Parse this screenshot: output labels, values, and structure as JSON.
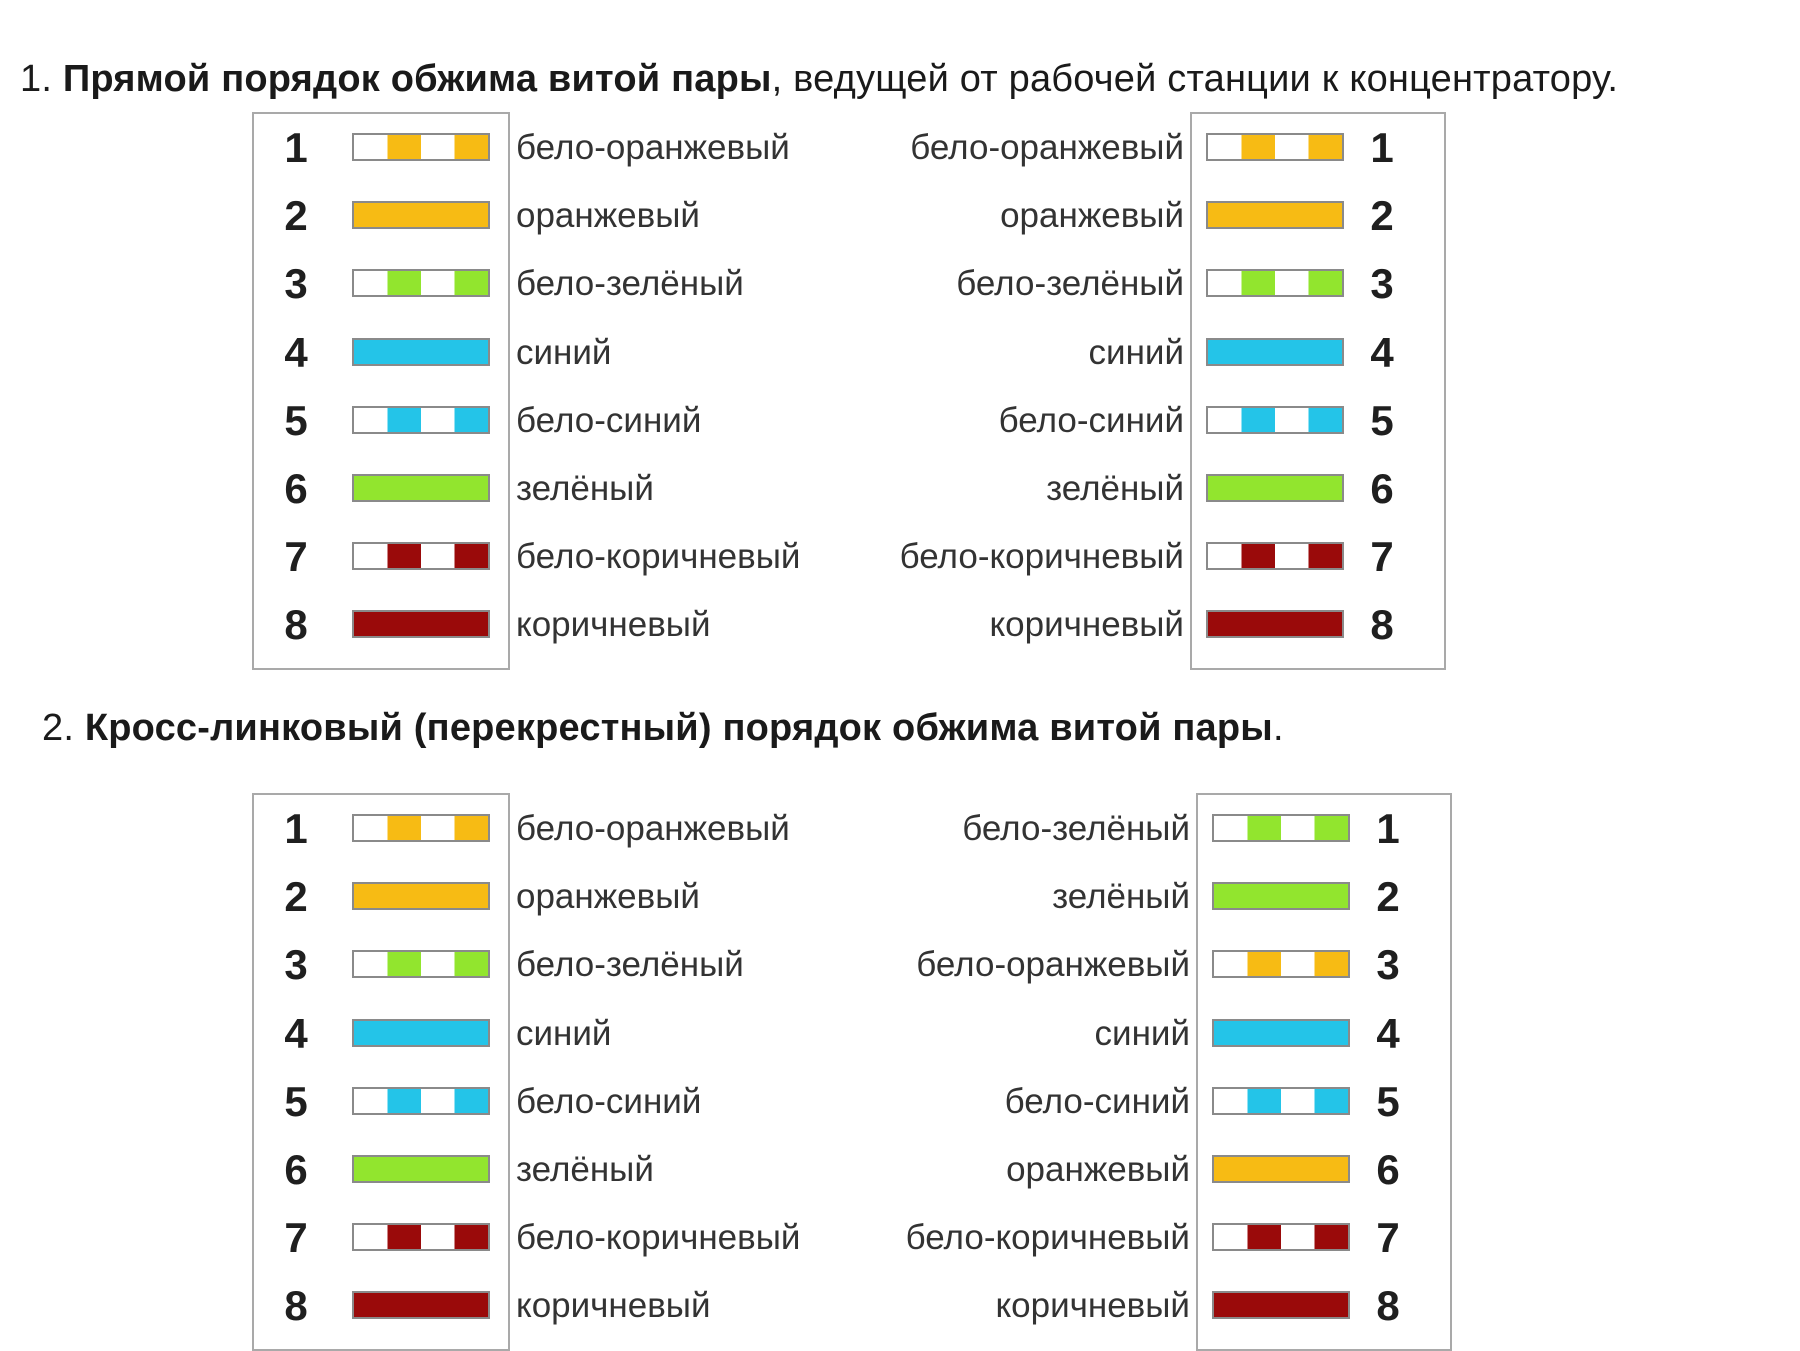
{
  "colors": {
    "orange": "#f7bb14",
    "green": "#92e52e",
    "blue": "#24c4e8",
    "brown": "#9a0a0a",
    "white": "#ffffff"
  },
  "section1": {
    "number": "1.",
    "title_bold": "Прямой порядок обжима витой пары",
    "title_rest": ", ведущей от рабочей станции к концентратору.",
    "left": [
      {
        "pin": "1",
        "label": "бело-оранжевый",
        "color": "orange",
        "striped": true
      },
      {
        "pin": "2",
        "label": "оранжевый",
        "color": "orange",
        "striped": false
      },
      {
        "pin": "3",
        "label": "бело-зелёный",
        "color": "green",
        "striped": true
      },
      {
        "pin": "4",
        "label": "синий",
        "color": "blue",
        "striped": false
      },
      {
        "pin": "5",
        "label": "бело-синий",
        "color": "blue",
        "striped": true
      },
      {
        "pin": "6",
        "label": "зелёный",
        "color": "green",
        "striped": false
      },
      {
        "pin": "7",
        "label": "бело-коричневый",
        "color": "brown",
        "striped": true
      },
      {
        "pin": "8",
        "label": "коричневый",
        "color": "brown",
        "striped": false
      }
    ],
    "right": [
      {
        "pin": "1",
        "label": "бело-оранжевый",
        "color": "orange",
        "striped": true
      },
      {
        "pin": "2",
        "label": "оранжевый",
        "color": "orange",
        "striped": false
      },
      {
        "pin": "3",
        "label": "бело-зелёный",
        "color": "green",
        "striped": true
      },
      {
        "pin": "4",
        "label": "синий",
        "color": "blue",
        "striped": false
      },
      {
        "pin": "5",
        "label": "бело-синий",
        "color": "blue",
        "striped": true
      },
      {
        "pin": "6",
        "label": "зелёный",
        "color": "green",
        "striped": false
      },
      {
        "pin": "7",
        "label": "бело-коричневый",
        "color": "brown",
        "striped": true
      },
      {
        "pin": "8",
        "label": "коричневый",
        "color": "brown",
        "striped": false
      }
    ]
  },
  "section2": {
    "number": "2.",
    "title_bold": "Кросс-линковый (перекрестный) порядок обжима витой пары",
    "title_rest": ".",
    "left": [
      {
        "pin": "1",
        "label": "бело-оранжевый",
        "color": "orange",
        "striped": true
      },
      {
        "pin": "2",
        "label": "оранжевый",
        "color": "orange",
        "striped": false
      },
      {
        "pin": "3",
        "label": "бело-зелёный",
        "color": "green",
        "striped": true
      },
      {
        "pin": "4",
        "label": "синий",
        "color": "blue",
        "striped": false
      },
      {
        "pin": "5",
        "label": "бело-синий",
        "color": "blue",
        "striped": true
      },
      {
        "pin": "6",
        "label": "зелёный",
        "color": "green",
        "striped": false
      },
      {
        "pin": "7",
        "label": "бело-коричневый",
        "color": "brown",
        "striped": true
      },
      {
        "pin": "8",
        "label": "коричневый",
        "color": "brown",
        "striped": false
      }
    ],
    "right": [
      {
        "pin": "1",
        "label": "бело-зелёный",
        "color": "green",
        "striped": true
      },
      {
        "pin": "2",
        "label": "зелёный",
        "color": "green",
        "striped": false
      },
      {
        "pin": "3",
        "label": "бело-оранжевый",
        "color": "orange",
        "striped": true
      },
      {
        "pin": "4",
        "label": "синий",
        "color": "blue",
        "striped": false
      },
      {
        "pin": "5",
        "label": "бело-синий",
        "color": "blue",
        "striped": true
      },
      {
        "pin": "6",
        "label": "оранжевый",
        "color": "orange",
        "striped": false
      },
      {
        "pin": "7",
        "label": "бело-коричневый",
        "color": "brown",
        "striped": true
      },
      {
        "pin": "8",
        "label": "коричневый",
        "color": "brown",
        "striped": false
      }
    ]
  }
}
